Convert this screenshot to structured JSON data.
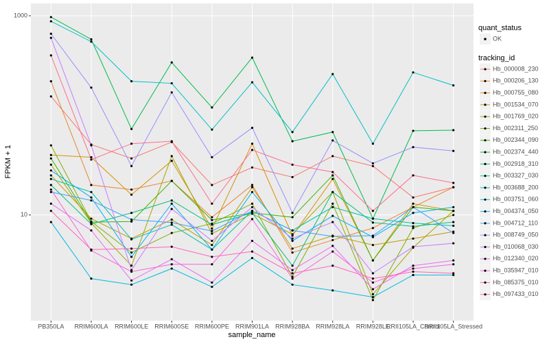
{
  "chart_data": {
    "type": "line",
    "x_label": "sample_name",
    "y_label": "FPKM + 1",
    "categories": [
      "PB350LA",
      "RRIM600LA",
      "RRIM600LE",
      "RRIM600SE",
      "RRIM600PE",
      "RRIM901LA",
      "RRIM928BA",
      "RRIM928LA",
      "RRIM928LE",
      "RRII105LA_Control",
      "RRII105LA_Stressed"
    ],
    "log_y": true,
    "ylim": [
      0.87,
      1330
    ],
    "yticks": [
      10,
      1000
    ],
    "grid": true,
    "legend_position": "right",
    "point_color": "#000000",
    "shape_legend_title": "quant_status",
    "shape_legend_labels": [
      "OK"
    ],
    "legend_title": "tracking_id",
    "series": [
      {
        "name": "Hb_000008_230",
        "color": "#F8766D",
        "values": [
          155,
          51,
          37,
          54,
          20,
          30,
          24,
          39,
          31,
          15,
          19
        ]
      },
      {
        "name": "Hb_000206_130",
        "color": "#EA8331",
        "values": [
          220,
          20,
          18,
          22,
          9.5,
          20,
          4.2,
          5.6,
          7.4,
          12,
          19
        ]
      },
      {
        "name": "Hb_000755_080",
        "color": "#D89000",
        "values": [
          40,
          38,
          16,
          35,
          7.3,
          52,
          6.2,
          23,
          3.5,
          13,
          11
        ]
      },
      {
        "name": "Hb_001534_070",
        "color": "#C09B00",
        "values": [
          25,
          9.2,
          5.8,
          9,
          5,
          19,
          4.6,
          6.2,
          5,
          5.8,
          6.8
        ]
      },
      {
        "name": "Hb_001769_020",
        "color": "#A3A500",
        "values": [
          32,
          8.3,
          3.1,
          39,
          6.5,
          10.3,
          6.4,
          17,
          1.6,
          4.7,
          11
        ]
      },
      {
        "name": "Hb_002311_250",
        "color": "#7CAE00",
        "values": [
          50,
          8.6,
          4.2,
          6.6,
          8.2,
          13,
          2.4,
          13,
          1.4,
          7.4,
          10
        ]
      },
      {
        "name": "Hb_002344_090",
        "color": "#39B600",
        "values": [
          37,
          8.5,
          8.6,
          22,
          8.9,
          10.5,
          9.5,
          25,
          3.5,
          12,
          11
        ]
      },
      {
        "name": "Hb_002374_440",
        "color": "#00BB4E",
        "values": [
          970,
          580,
          73,
          340,
          120,
          380,
          55,
          68,
          9.2,
          70,
          71
        ]
      },
      {
        "name": "Hb_002918_310",
        "color": "#00BF7D",
        "values": [
          20,
          8.1,
          10.5,
          14,
          8,
          10.5,
          3.1,
          17,
          8.4,
          7.7,
          8.5
        ]
      },
      {
        "name": "Hb_003327_030",
        "color": "#00C1A3",
        "values": [
          23,
          17,
          5.7,
          8,
          4.5,
          11,
          7,
          12,
          9.2,
          8.3,
          7.8
        ]
      },
      {
        "name": "Hb_003688_200",
        "color": "#00BFC4",
        "values": [
          880,
          550,
          220,
          210,
          72,
          215,
          68,
          260,
          52,
          270,
          200
        ]
      },
      {
        "name": "Hb_003751_060",
        "color": "#00BAE0",
        "values": [
          8.5,
          2.3,
          2,
          2.9,
          1.9,
          3.7,
          2,
          1.75,
          1.5,
          2.5,
          2.5
        ]
      },
      {
        "name": "Hb_004374_050",
        "color": "#00B0F6",
        "values": [
          28,
          15,
          3.8,
          13,
          4.5,
          17,
          5.5,
          9.8,
          6,
          10.5,
          12
        ]
      },
      {
        "name": "Hb_004712_110",
        "color": "#35A2FF",
        "values": [
          17,
          14,
          9,
          8.4,
          6.9,
          11,
          7,
          6.1,
          6.2,
          12,
          6.6
        ]
      },
      {
        "name": "Hb_008749_050",
        "color": "#9590FF",
        "values": [
          660,
          190,
          31,
          170,
          38,
          75,
          10.5,
          56,
          33,
          48,
          44
        ]
      },
      {
        "name": "Hb_010068_030",
        "color": "#C77CFF",
        "values": [
          600,
          50,
          2.8,
          11.5,
          5.5,
          12,
          5.8,
          8.5,
          2.6,
          4.8,
          5.2
        ]
      },
      {
        "name": "Hb_012340_020",
        "color": "#E76BF3",
        "values": [
          13,
          7,
          2.2,
          3.6,
          2.1,
          5.5,
          2.8,
          4.9,
          1.8,
          3.1,
          3.5
        ]
      },
      {
        "name": "Hb_035947_010",
        "color": "#FA62DB",
        "values": [
          18,
          4.4,
          2.7,
          3.2,
          3.2,
          9.1,
          2.3,
          4.3,
          2.1,
          2.9,
          3.2
        ]
      },
      {
        "name": "Hb_085375_010",
        "color": "#FF62BC",
        "values": [
          11,
          4.5,
          4.6,
          4.8,
          3.8,
          4.3,
          2.6,
          3.1,
          2.3,
          2.7,
          2.6
        ]
      },
      {
        "name": "Hb_097433_010",
        "color": "#FF6C91",
        "values": [
          400,
          36,
          52,
          55,
          13,
          45,
          32,
          27,
          11,
          25,
          21
        ]
      }
    ]
  }
}
